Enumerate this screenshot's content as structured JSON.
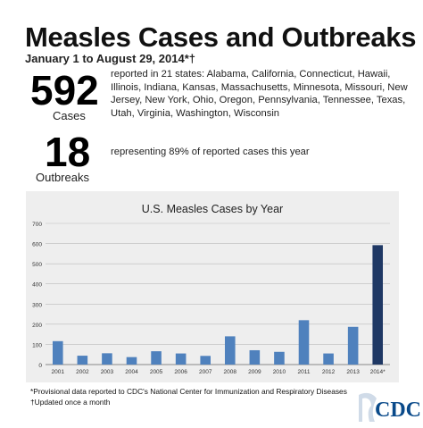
{
  "header": {
    "title": "Measles Cases and Outbreaks",
    "subtitle": "January 1 to August 29, 2014*†"
  },
  "stats": {
    "cases_number": "592",
    "cases_label": "Cases",
    "cases_text": "reported in 21 states: Alabama, California, Connecticut, Hawaii, Illinois, Indiana, Kansas, Massachusetts, Minnesota, Missouri, New Jersey, New York, Ohio, Oregon, Pennsylvania, Tennessee, Texas, Utah, Virginia, Washington, Wisconsin",
    "outbreaks_number": "18",
    "outbreaks_label": "Outbreaks",
    "outbreaks_text": "representing 89% of reported cases this year"
  },
  "footnotes": {
    "line1": "*Provisional data reported to CDC's National Center for Immunization and Respiratory Diseases",
    "line2": "†Updated once a month"
  },
  "logo": {
    "text": "CDC",
    "color": "#0a4a8a"
  },
  "colors": {
    "bar": "#4f81bd",
    "highlight_bar": "#1f3864",
    "panel": "#eeeeee"
  },
  "chart_data": {
    "type": "bar",
    "title": "U.S. Measles Cases by Year",
    "categories": [
      "2001",
      "2002",
      "2003",
      "2004",
      "2005",
      "2006",
      "2007",
      "2008",
      "2009",
      "2010",
      "2011",
      "2012",
      "2013",
      "2014*"
    ],
    "values": [
      116,
      44,
      56,
      37,
      66,
      55,
      43,
      140,
      71,
      63,
      220,
      55,
      187,
      592
    ],
    "highlight_index": 13,
    "ylim": [
      0,
      700
    ],
    "yticks": [
      0,
      100,
      200,
      300,
      400,
      500,
      600,
      700
    ],
    "xlabel": "",
    "ylabel": "",
    "grid": true
  }
}
